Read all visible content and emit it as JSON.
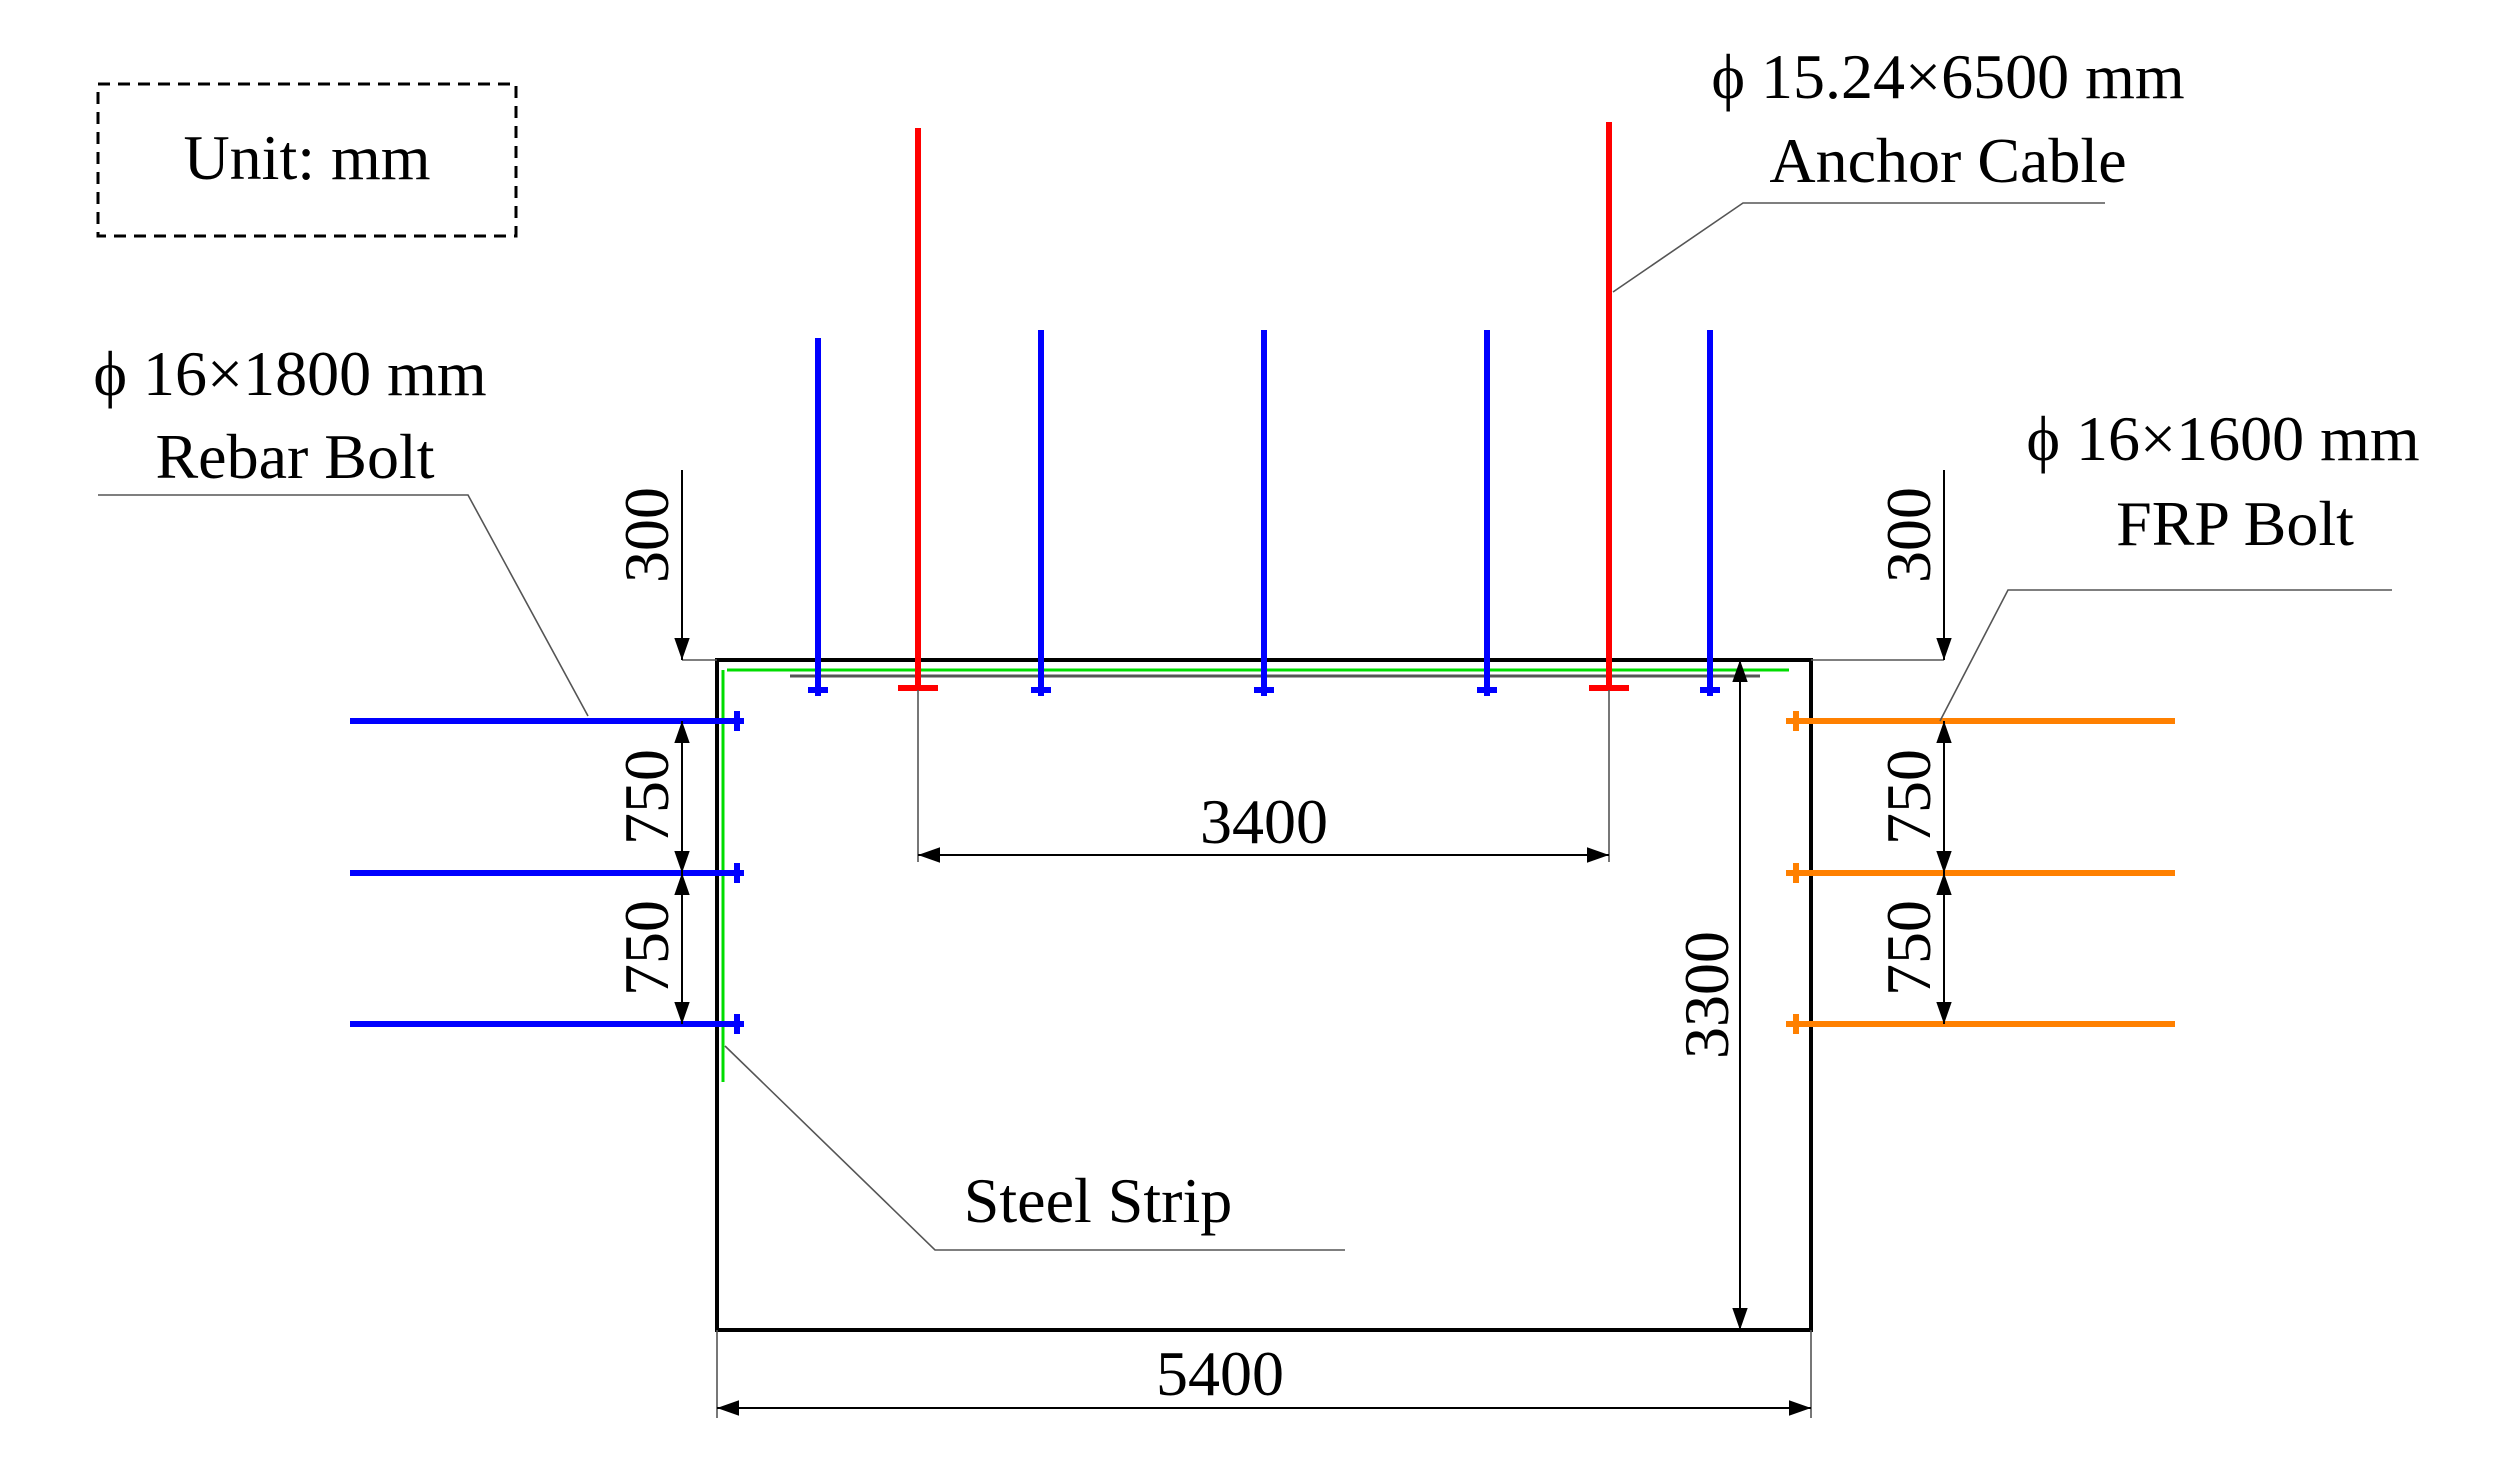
{
  "unit_label": "Unit: mm",
  "anchor_cable": {
    "spec": "ϕ 15.24×6500 mm",
    "name": "Anchor Cable",
    "color": "#ff0000"
  },
  "rebar_bolt": {
    "spec": "ϕ 16×1800 mm",
    "name": "Rebar Bolt",
    "color": "#0000ff"
  },
  "frp_bolt": {
    "spec": "ϕ 16×1600 mm",
    "name": "FRP Bolt",
    "color": "#ff8000"
  },
  "steel_strip": {
    "name": "Steel Strip",
    "color": "#00dd00"
  },
  "dimensions": {
    "left_top_offset": "300",
    "left_spacing_1": "750",
    "left_spacing_2": "750",
    "right_top_offset": "300",
    "right_spacing_1": "750",
    "right_spacing_2": "750",
    "cable_spacing": "3400",
    "height": "3300",
    "width": "5400"
  }
}
